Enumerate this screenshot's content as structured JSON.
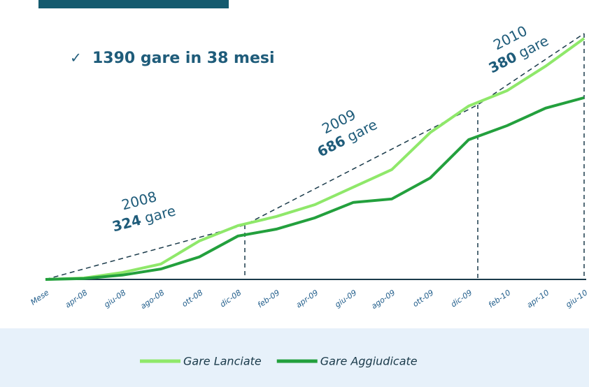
{
  "chart_data": {
    "type": "line",
    "headline": "1390 gare in 38 mesi",
    "categories": [
      "Mese",
      "apr-08",
      "giu-08",
      "ago-08",
      "ott-08",
      "dic-08",
      "feb-09",
      "apr-09",
      "giu-09",
      "ago-09",
      "ott-09",
      "dic-09",
      "feb-10",
      "apr-10",
      "giu-10"
    ],
    "series": [
      {
        "name": "Gare Lanciate",
        "color": "#8fe86a",
        "values": [
          0,
          8,
          40,
          89,
          222,
          310,
          363,
          431,
          532,
          633,
          847,
          1000,
          1089,
          1230,
          1390
        ]
      },
      {
        "name": "Gare Aggiudicate",
        "color": "#23a03d",
        "values": [
          0,
          5,
          25,
          60,
          130,
          250,
          290,
          355,
          444,
          464,
          585,
          806,
          887,
          988,
          1048
        ]
      }
    ],
    "annotations": [
      {
        "year": "2008",
        "count": 324,
        "unit": "gare"
      },
      {
        "year": "2009",
        "count": 686,
        "unit": "gare"
      },
      {
        "year": "2010",
        "count": 380,
        "unit": "gare"
      }
    ],
    "ylim": [
      0,
      1400
    ],
    "legend": "bottom"
  }
}
